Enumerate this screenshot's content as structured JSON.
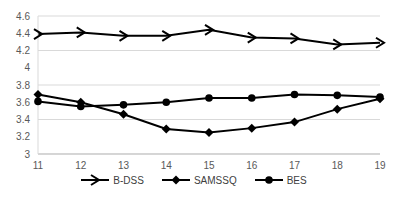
{
  "chart_data": {
    "type": "line",
    "categories": [
      "11",
      "12",
      "13",
      "14",
      "15",
      "16",
      "17",
      "18",
      "19"
    ],
    "series": [
      {
        "name": "B-DSS",
        "color": "#000000",
        "marker": "arrow",
        "values": [
          4.39,
          4.41,
          4.37,
          4.37,
          4.44,
          4.35,
          4.34,
          4.27,
          4.29
        ]
      },
      {
        "name": "SAMSSQ",
        "color": "#000000",
        "marker": "diamond",
        "values": [
          3.69,
          3.6,
          3.46,
          3.29,
          3.25,
          3.3,
          3.37,
          3.52,
          3.64
        ]
      },
      {
        "name": "BES",
        "color": "#000000",
        "marker": "circle",
        "values": [
          3.61,
          3.55,
          3.57,
          3.6,
          3.65,
          3.65,
          3.69,
          3.68,
          3.66
        ]
      }
    ],
    "ylim": [
      3,
      4.6
    ],
    "yticks": [
      3,
      3.2,
      3.4,
      3.6,
      3.8,
      4,
      4.2,
      4.4,
      4.6
    ],
    "grid": true,
    "legend": "bottom"
  }
}
